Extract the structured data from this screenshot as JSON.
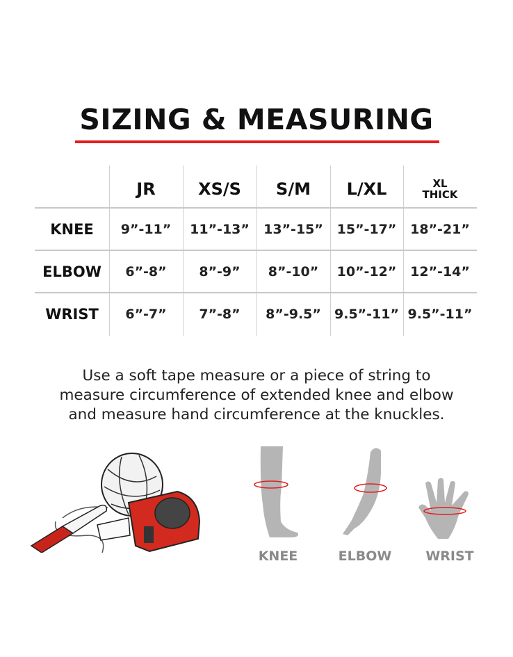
{
  "title": "SIZING & MEASURING",
  "accent_color": "#e41e1e",
  "table": {
    "columns": [
      "JR",
      "XS/S",
      "S/M",
      "L/XL",
      "XL\nTHICK"
    ],
    "column_lines": [
      [
        "JR"
      ],
      [
        "XS/S"
      ],
      [
        "S/M"
      ],
      [
        "L/XL"
      ],
      [
        "XL",
        "THICK"
      ]
    ],
    "rows": [
      {
        "label": "KNEE",
        "values": [
          "9”-11”",
          "11”-13”",
          "13”-15”",
          "15”-17”",
          "18”-21”"
        ]
      },
      {
        "label": "ELBOW",
        "values": [
          "6”-8”",
          "8”-9”",
          "8”-10”",
          "10”-12”",
          "12”-14”"
        ]
      },
      {
        "label": "WRIST",
        "values": [
          "6”-7”",
          "7”-8”",
          "8”-9.5”",
          "9.5”-11”",
          "9.5”-11”"
        ]
      }
    ]
  },
  "instructions": [
    "Use a soft tape measure or a piece of string to",
    "measure circumference of extended knee and elbow",
    "and measure hand circumference at the knuckles."
  ],
  "illustrations": {
    "tools_icons": [
      "string-ball-icon",
      "marker-pen-icon",
      "tape-measure-icon"
    ],
    "body_parts": [
      {
        "label": "KNEE",
        "icon": "leg-icon"
      },
      {
        "label": "ELBOW",
        "icon": "arm-icon"
      },
      {
        "label": "WRIST",
        "icon": "hand-icon"
      }
    ],
    "figure_color": "#b5b5b5"
  }
}
